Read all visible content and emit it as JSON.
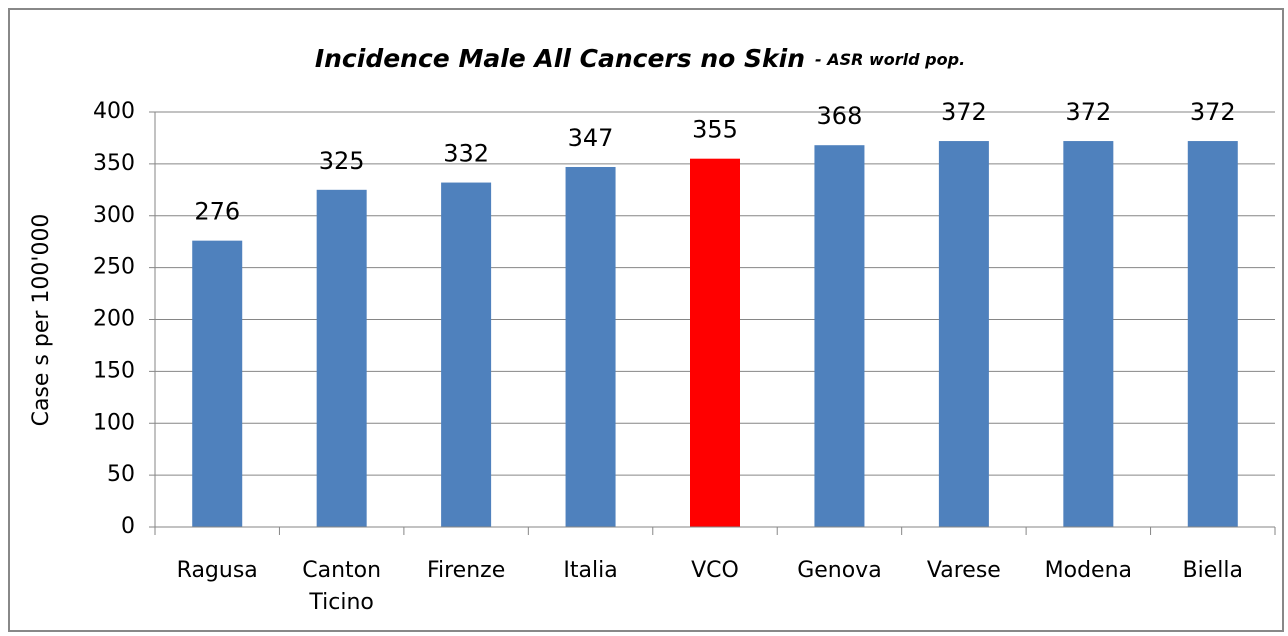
{
  "chart_data": {
    "type": "bar",
    "title": "Incidence Male All Cancers no Skin",
    "subtitle": "- ASR world pop.",
    "y_label": "Case s per 100'000",
    "categories": [
      "Ragusa",
      "Canton Ticino",
      "Firenze",
      "Italia",
      "VCO",
      "Genova",
      "Varese",
      "Modena",
      "Biella"
    ],
    "values": [
      276,
      325,
      332,
      347,
      355,
      368,
      372,
      372,
      372
    ],
    "colors": [
      "#4f81bd",
      "#4f81bd",
      "#4f81bd",
      "#4f81bd",
      "#ff0000",
      "#4f81bd",
      "#4f81bd",
      "#4f81bd",
      "#4f81bd"
    ],
    "ylim": [
      0,
      400
    ],
    "yticks": [
      0,
      50,
      100,
      150,
      200,
      250,
      300,
      350,
      400
    ],
    "grid": true
  }
}
